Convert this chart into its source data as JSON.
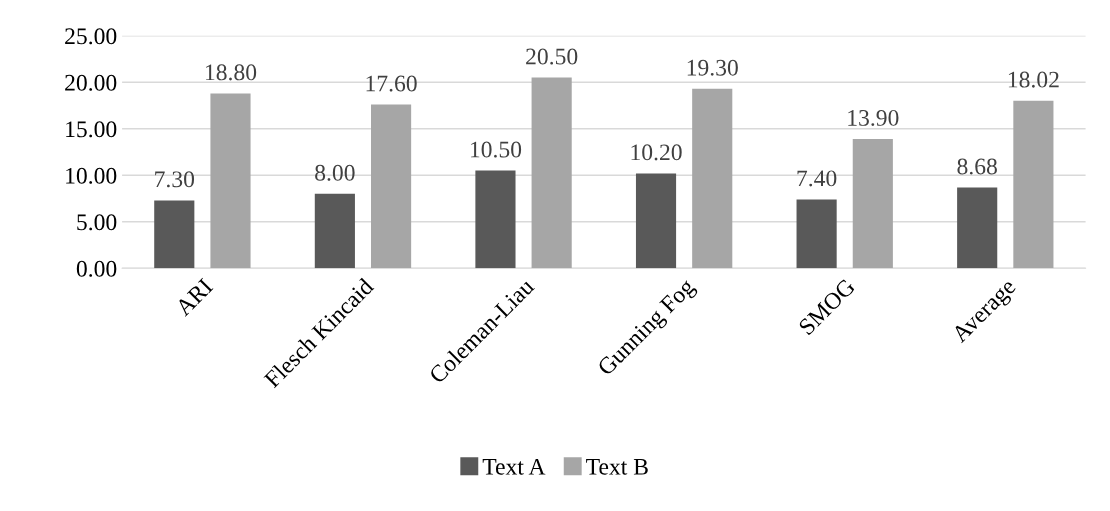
{
  "chart_data": {
    "type": "bar",
    "categories": [
      "ARI",
      "Flesch Kincaid",
      "Coleman-Liau",
      "Gunning Fog",
      "SMOG",
      "Average"
    ],
    "series": [
      {
        "name": "Text A",
        "color": "#595959",
        "values": [
          7.3,
          8.0,
          10.5,
          10.2,
          7.4,
          8.68
        ],
        "value_labels": [
          "7.30",
          "8.00",
          "10.50",
          "10.20",
          "7.40",
          "8.68"
        ]
      },
      {
        "name": "Text B",
        "color": "#a6a6a6",
        "values": [
          18.8,
          17.6,
          20.5,
          19.3,
          13.9,
          18.02
        ],
        "value_labels": [
          "18.80",
          "17.60",
          "20.50",
          "19.30",
          "13.90",
          "18.02"
        ]
      }
    ],
    "ylim": [
      0,
      25
    ],
    "yticks": [
      {
        "value": 0,
        "label": "0.00"
      },
      {
        "value": 5,
        "label": "5.00"
      },
      {
        "value": 10,
        "label": "10.00"
      },
      {
        "value": 15,
        "label": "15.00"
      },
      {
        "value": 20,
        "label": "20.00"
      },
      {
        "value": 25,
        "label": "25.00"
      }
    ],
    "grid": "y",
    "legend": "bottom"
  }
}
